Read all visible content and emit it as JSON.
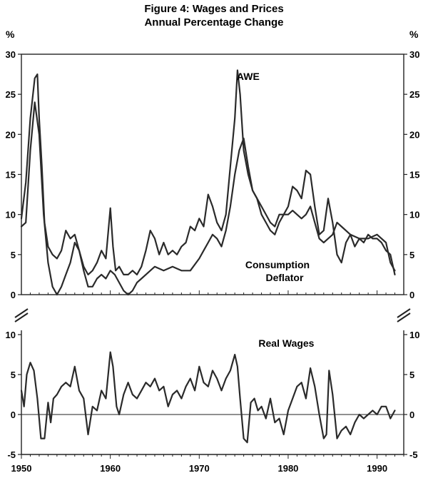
{
  "chart_data": {
    "type": "line",
    "title": "Figure 4: Wages and Prices",
    "subtitle": "Annual Percentage Change",
    "ylabel_left": "%",
    "ylabel_right": "%",
    "x_ticks": [
      "1950",
      "1960",
      "1970",
      "1980",
      "1990"
    ],
    "xlim": [
      1950,
      1993
    ],
    "grid": false,
    "panels": [
      {
        "name": "top",
        "ylim": [
          0,
          30
        ],
        "y_ticks": [
          "0",
          "5",
          "10",
          "15",
          "20",
          "25",
          "30"
        ],
        "annotations": [
          {
            "text": "AWE",
            "x": 1975.5,
            "y": 26.8
          },
          {
            "text": "Consumption",
            "x": 1978.8,
            "y": 3.3
          },
          {
            "text": "Deflator",
            "x": 1979.6,
            "y": 1.7
          }
        ],
        "series": [
          {
            "x": [
              1950.0,
              1950.5,
              1951.0,
              1951.5,
              1951.8,
              1952.0,
              1952.3,
              1952.6,
              1953.0,
              1953.5,
              1954.0,
              1954.5,
              1955.0,
              1955.5,
              1956.0,
              1956.5,
              1957.0,
              1957.5,
              1958.0,
              1958.5,
              1959.0,
              1959.5,
              1960.0,
              1960.3,
              1960.6,
              1961.0,
              1961.5,
              1962.0,
              1962.5,
              1963.0,
              1963.5,
              1964.0,
              1964.5,
              1965.0,
              1965.5,
              1966.0,
              1966.5,
              1967.0,
              1967.5,
              1968.0,
              1968.5,
              1969.0,
              1969.5,
              1970.0,
              1970.5,
              1971.0,
              1971.5,
              1972.0,
              1972.5,
              1973.0,
              1973.5,
              1974.0,
              1974.3,
              1974.6,
              1975.0,
              1975.5,
              1976.0,
              1976.5,
              1977.0,
              1977.5,
              1978.0,
              1978.5,
              1979.0,
              1979.5,
              1980.0,
              1980.5,
              1981.0,
              1981.5,
              1982.0,
              1982.5,
              1983.0,
              1983.5,
              1984.0,
              1984.5,
              1985.0,
              1985.5,
              1986.0,
              1986.5,
              1987.0,
              1987.5,
              1988.0,
              1988.5,
              1989.0,
              1989.5,
              1990.0,
              1990.5,
              1991.0,
              1991.5,
              1992.0
            ],
            "y": [
              9.5,
              14.0,
              22.0,
              27.0,
              27.5,
              22.0,
              16.0,
              9.0,
              6.0,
              5.0,
              4.5,
              5.5,
              8.0,
              7.0,
              7.5,
              5.5,
              3.5,
              2.5,
              3.0,
              4.0,
              5.5,
              4.5,
              10.8,
              6.0,
              3.0,
              3.5,
              2.5,
              2.5,
              3.0,
              2.5,
              3.5,
              5.5,
              8.0,
              7.0,
              5.0,
              6.5,
              5.0,
              5.5,
              5.0,
              6.0,
              6.5,
              8.5,
              8.0,
              9.5,
              8.5,
              12.5,
              11.0,
              9.0,
              8.0,
              10.0,
              16.0,
              22.0,
              28.0,
              25.0,
              18.0,
              15.0,
              13.0,
              12.0,
              10.0,
              9.0,
              8.0,
              7.5,
              9.0,
              10.0,
              11.0,
              13.5,
              13.0,
              12.0,
              15.5,
              15.0,
              11.0,
              7.5,
              8.0,
              12.0,
              9.0,
              5.0,
              4.0,
              6.5,
              7.5,
              6.0,
              7.0,
              6.5,
              7.5,
              7.0,
              7.0,
              6.5,
              5.5,
              5.0,
              2.5
            ]
          },
          {
            "x": [
              1950.0,
              1950.5,
              1951.0,
              1951.5,
              1952.0,
              1952.5,
              1953.0,
              1953.5,
              1954.0,
              1954.5,
              1955.0,
              1955.5,
              1956.0,
              1956.5,
              1957.0,
              1957.5,
              1958.0,
              1958.5,
              1959.0,
              1959.5,
              1960.0,
              1960.5,
              1961.0,
              1961.5,
              1962.0,
              1962.5,
              1963.0,
              1963.5,
              1964.0,
              1964.5,
              1965.0,
              1966.0,
              1967.0,
              1968.0,
              1969.0,
              1970.0,
              1970.5,
              1971.0,
              1971.5,
              1972.0,
              1972.5,
              1973.0,
              1973.5,
              1974.0,
              1974.5,
              1975.0,
              1975.5,
              1976.0,
              1977.0,
              1978.0,
              1978.5,
              1979.0,
              1980.0,
              1980.5,
              1981.0,
              1981.5,
              1982.0,
              1982.5,
              1983.0,
              1983.5,
              1984.0,
              1984.5,
              1985.0,
              1985.5,
              1986.0,
              1987.0,
              1988.0,
              1989.0,
              1990.0,
              1991.0,
              1991.5,
              1992.0
            ],
            "y": [
              8.5,
              9.0,
              18.0,
              24.0,
              20.0,
              10.0,
              4.0,
              1.0,
              0.0,
              1.0,
              2.5,
              4.0,
              6.5,
              5.5,
              3.0,
              1.0,
              1.0,
              2.0,
              2.5,
              2.0,
              3.0,
              2.5,
              1.5,
              0.5,
              0.0,
              0.5,
              1.5,
              2.0,
              2.5,
              3.0,
              3.5,
              3.0,
              3.5,
              3.0,
              3.0,
              4.5,
              5.5,
              6.5,
              7.5,
              7.0,
              6.0,
              8.0,
              11.0,
              15.0,
              18.0,
              19.5,
              16.0,
              13.0,
              11.0,
              9.0,
              8.5,
              10.0,
              10.0,
              10.5,
              10.0,
              9.5,
              10.0,
              11.0,
              9.0,
              7.0,
              6.5,
              7.0,
              7.5,
              9.0,
              8.5,
              7.5,
              7.0,
              7.0,
              7.5,
              6.5,
              4.0,
              3.0
            ]
          }
        ]
      },
      {
        "name": "bottom",
        "ylim": [
          -5,
          10
        ],
        "y_ticks": [
          "-5",
          "0",
          "5",
          "10"
        ],
        "annotations": [
          {
            "text": "Real Wages",
            "x": 1979.8,
            "y": 8.5
          }
        ],
        "series": [
          {
            "name": "Real Wages",
            "x": [
              1950.0,
              1950.3,
              1950.6,
              1951.0,
              1951.4,
              1951.8,
              1952.2,
              1952.6,
              1953.0,
              1953.3,
              1953.6,
              1954.0,
              1954.5,
              1955.0,
              1955.5,
              1956.0,
              1956.5,
              1957.0,
              1957.5,
              1958.0,
              1958.5,
              1959.0,
              1959.5,
              1960.0,
              1960.3,
              1960.7,
              1961.0,
              1961.5,
              1962.0,
              1962.5,
              1963.0,
              1963.5,
              1964.0,
              1964.5,
              1965.0,
              1965.5,
              1966.0,
              1966.5,
              1967.0,
              1967.5,
              1968.0,
              1968.5,
              1969.0,
              1969.5,
              1970.0,
              1970.5,
              1971.0,
              1971.5,
              1972.0,
              1972.5,
              1973.0,
              1973.5,
              1974.0,
              1974.3,
              1974.6,
              1975.0,
              1975.4,
              1975.8,
              1976.2,
              1976.6,
              1977.0,
              1977.5,
              1978.0,
              1978.5,
              1979.0,
              1979.5,
              1980.0,
              1980.5,
              1981.0,
              1981.5,
              1982.0,
              1982.5,
              1983.0,
              1983.5,
              1984.0,
              1984.3,
              1984.6,
              1985.0,
              1985.5,
              1986.0,
              1986.5,
              1987.0,
              1987.5,
              1988.0,
              1988.5,
              1989.0,
              1989.5,
              1990.0,
              1990.5,
              1991.0,
              1991.5,
              1992.0
            ],
            "y": [
              3.0,
              1.0,
              5.0,
              6.5,
              5.5,
              2.0,
              -3.0,
              -3.0,
              1.5,
              -1.0,
              2.0,
              2.5,
              3.5,
              4.0,
              3.5,
              6.0,
              3.0,
              2.0,
              -2.5,
              1.0,
              0.5,
              3.0,
              2.0,
              7.8,
              6.0,
              1.0,
              0.0,
              2.5,
              4.0,
              2.5,
              2.0,
              3.0,
              4.0,
              3.5,
              4.5,
              3.0,
              3.5,
              1.0,
              2.5,
              3.0,
              2.0,
              3.5,
              4.5,
              3.0,
              6.0,
              4.0,
              3.5,
              5.5,
              4.5,
              3.0,
              4.5,
              5.5,
              7.5,
              6.0,
              2.0,
              -3.0,
              -3.5,
              1.5,
              2.0,
              0.5,
              1.0,
              -0.5,
              2.0,
              -1.0,
              -0.5,
              -2.5,
              0.5,
              2.0,
              3.5,
              4.0,
              2.0,
              5.8,
              3.5,
              0.0,
              -3.0,
              -2.5,
              5.5,
              2.5,
              -3.0,
              -2.0,
              -1.5,
              -2.5,
              -1.0,
              0.0,
              -0.5,
              0.0,
              0.5,
              0.0,
              1.0,
              1.0,
              -0.5,
              0.5
            ]
          }
        ]
      }
    ]
  }
}
